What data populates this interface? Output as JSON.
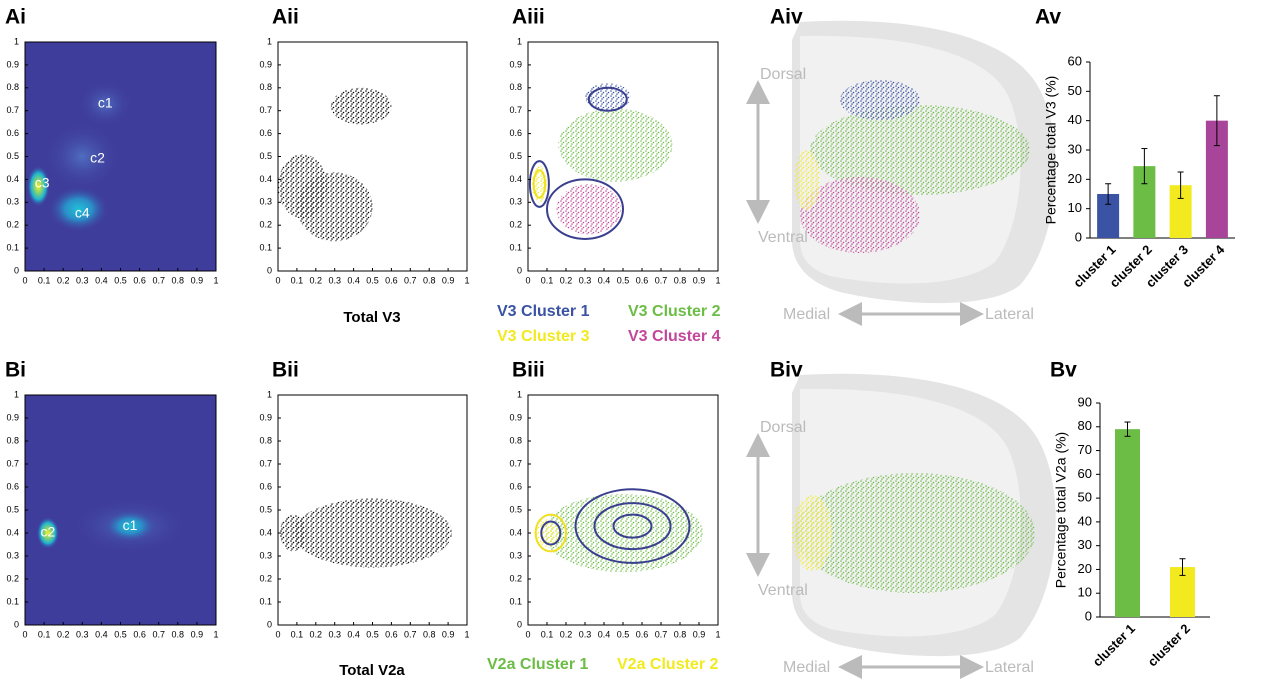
{
  "chart_data": [
    {
      "type": "density",
      "label": "Ai",
      "xlim": [
        0,
        1
      ],
      "ylim": [
        0,
        1
      ],
      "xticks": [
        0,
        0.1,
        0.2,
        0.3,
        0.4,
        0.5,
        0.6,
        0.7,
        0.8,
        0.9,
        1
      ],
      "yticks": [
        0,
        0.1,
        0.2,
        0.3,
        0.4,
        0.5,
        0.6,
        0.7,
        0.8,
        0.9,
        1
      ],
      "annotations": [
        "c1",
        "c2",
        "c3",
        "c4"
      ]
    },
    {
      "type": "scatter",
      "label": "Aii",
      "xlabel": "Total V3",
      "xlim": [
        0,
        1
      ],
      "ylim": [
        0,
        1
      ],
      "xticks": [
        0,
        0.1,
        0.2,
        0.3,
        0.4,
        0.5,
        0.6,
        0.7,
        0.8,
        0.9,
        1
      ],
      "yticks": [
        0,
        0.1,
        0.2,
        0.3,
        0.4,
        0.5,
        0.6,
        0.7,
        0.8,
        0.9,
        1
      ],
      "series": [
        {
          "color": "#000000"
        }
      ]
    },
    {
      "type": "scatter",
      "label": "Aiii",
      "xlim": [
        0,
        1
      ],
      "ylim": [
        0,
        1
      ],
      "xticks": [
        0,
        0.1,
        0.2,
        0.3,
        0.4,
        0.5,
        0.6,
        0.7,
        0.8,
        0.9,
        1
      ],
      "yticks": [
        0,
        0.1,
        0.2,
        0.3,
        0.4,
        0.5,
        0.6,
        0.7,
        0.8,
        0.9,
        1
      ],
      "series": [
        {
          "name": "V3 Cluster 1",
          "color": "#3a53a4"
        },
        {
          "name": "V3 Cluster 2",
          "color": "#6cbd45"
        },
        {
          "name": "V3 Cluster 3",
          "color": "#f2ea1e"
        },
        {
          "name": "V3 Cluster 4",
          "color": "#c2479b"
        }
      ]
    },
    {
      "type": "schematic",
      "label": "Aiv",
      "annotations": [
        "Dorsal",
        "Ventral",
        "Medial",
        "Lateral"
      ]
    },
    {
      "type": "bar",
      "label": "Av",
      "ylabel": "Percentage total V3 (%)",
      "categories": [
        "cluster 1",
        "cluster 2",
        "cluster 3",
        "cluster 4"
      ],
      "values": [
        15,
        24.5,
        18,
        40
      ],
      "errors": [
        3.5,
        6,
        4.5,
        8.5
      ],
      "colors": [
        "#3a53a4",
        "#6cbd45",
        "#f2ea1e",
        "#a8449a"
      ],
      "ylim": [
        0,
        60
      ],
      "yticks": [
        0,
        10,
        20,
        30,
        40,
        50,
        60
      ]
    },
    {
      "type": "density",
      "label": "Bi",
      "xlim": [
        0,
        1
      ],
      "ylim": [
        0,
        1
      ],
      "xticks": [
        0,
        0.1,
        0.2,
        0.3,
        0.4,
        0.5,
        0.6,
        0.7,
        0.8,
        0.9,
        1
      ],
      "yticks": [
        0,
        0.1,
        0.2,
        0.3,
        0.4,
        0.5,
        0.6,
        0.7,
        0.8,
        0.9,
        1
      ],
      "annotations": [
        "c1",
        "c2"
      ]
    },
    {
      "type": "scatter",
      "label": "Bii",
      "xlabel": "Total V2a",
      "xlim": [
        0,
        1
      ],
      "ylim": [
        0,
        1
      ],
      "xticks": [
        0,
        0.1,
        0.2,
        0.3,
        0.4,
        0.5,
        0.6,
        0.7,
        0.8,
        0.9,
        1
      ],
      "yticks": [
        0,
        0.1,
        0.2,
        0.3,
        0.4,
        0.5,
        0.6,
        0.7,
        0.8,
        0.9,
        1
      ],
      "series": [
        {
          "color": "#000000"
        }
      ]
    },
    {
      "type": "scatter",
      "label": "Biii",
      "xlim": [
        0,
        1
      ],
      "ylim": [
        0,
        1
      ],
      "xticks": [
        0,
        0.1,
        0.2,
        0.3,
        0.4,
        0.5,
        0.6,
        0.7,
        0.8,
        0.9,
        1
      ],
      "yticks": [
        0,
        0.1,
        0.2,
        0.3,
        0.4,
        0.5,
        0.6,
        0.7,
        0.8,
        0.9,
        1
      ],
      "series": [
        {
          "name": "V2a Cluster 1",
          "color": "#6cbd45"
        },
        {
          "name": "V2a Cluster 2",
          "color": "#f2ea1e"
        }
      ]
    },
    {
      "type": "schematic",
      "label": "Biv",
      "annotations": [
        "Dorsal",
        "Ventral",
        "Medial",
        "Lateral"
      ]
    },
    {
      "type": "bar",
      "label": "Bv",
      "ylabel": "Percentage total V2a (%)",
      "categories": [
        "cluster 1",
        "cluster 2"
      ],
      "values": [
        79,
        21
      ],
      "errors": [
        3,
        3.5
      ],
      "colors": [
        "#6cbd45",
        "#f2ea1e"
      ],
      "ylim": [
        0,
        90
      ],
      "yticks": [
        0,
        10,
        20,
        30,
        40,
        50,
        60,
        70,
        80,
        90
      ]
    }
  ]
}
